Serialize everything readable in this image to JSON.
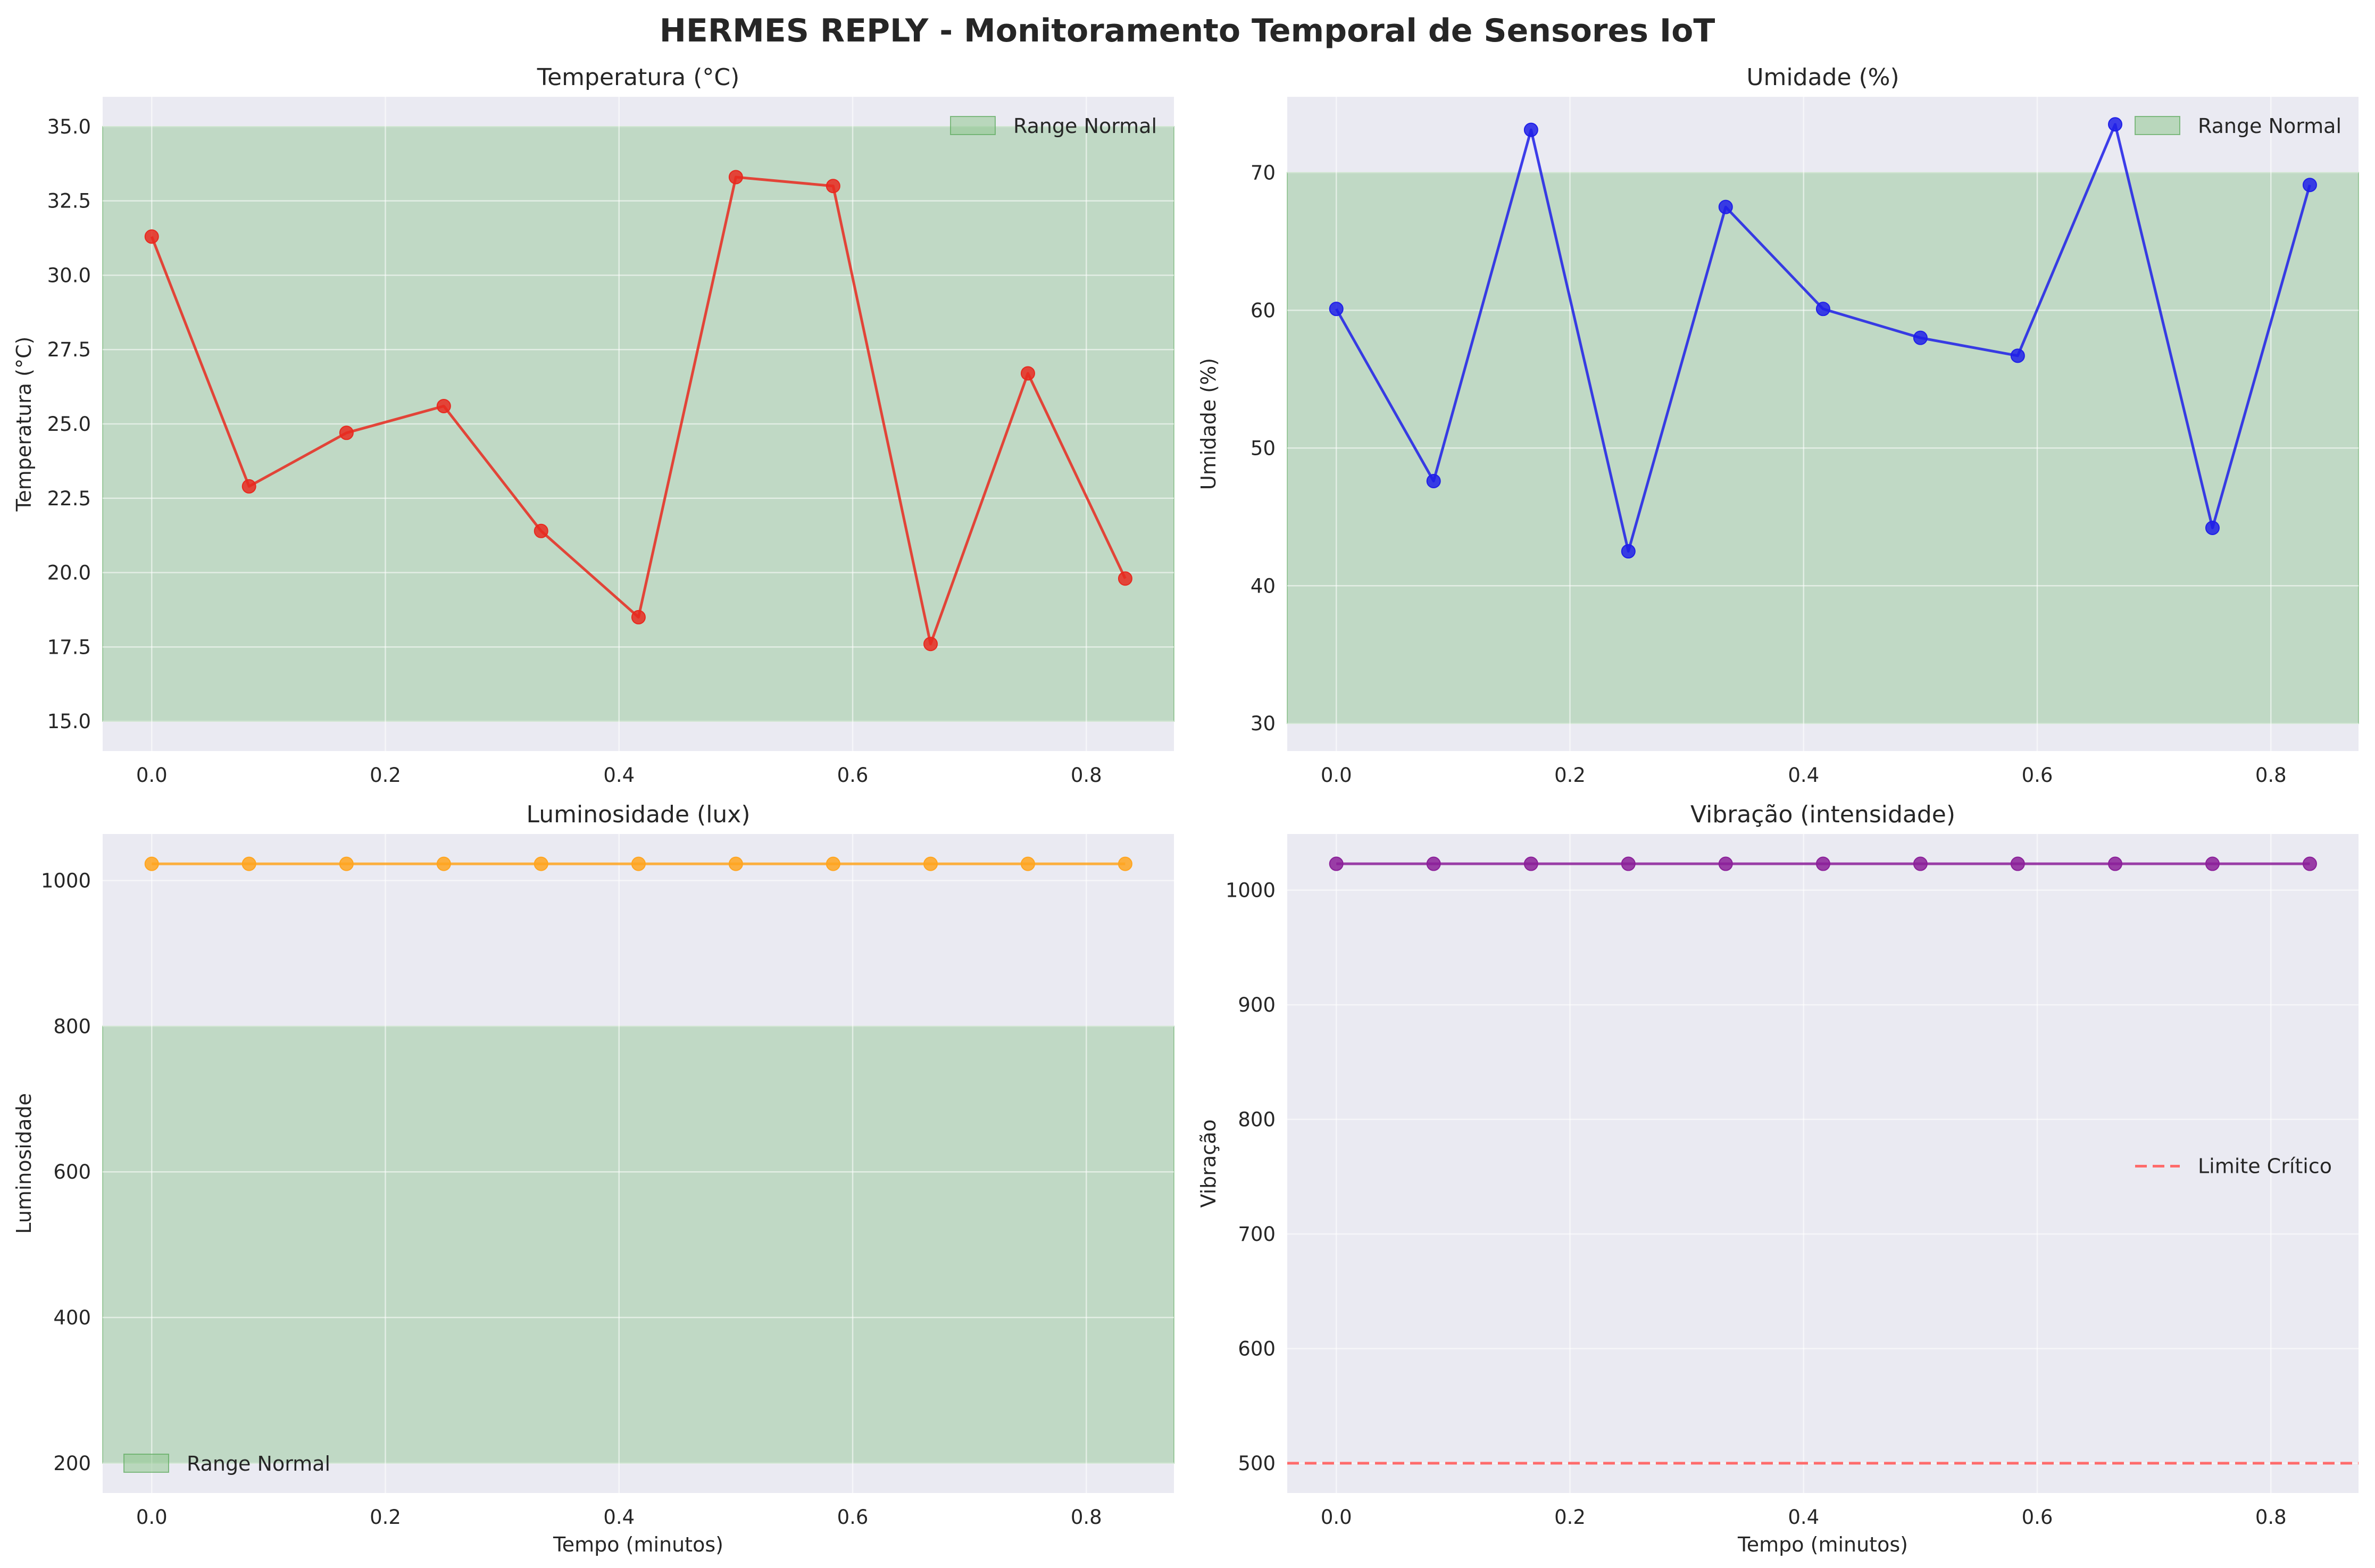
{
  "suptitle": "HERMES REPLY - Monitoramento Temporal de Sensores IoT",
  "colors": {
    "axes_bg": "#eaeaf2",
    "grid": "#ffffff",
    "normal_band": "#8fc68f",
    "critical_line": "#ff6b6b"
  },
  "chart_data": [
    {
      "type": "line",
      "title": "Temperatura (°C)",
      "xlabel": "",
      "ylabel": "Temperatura (°C)",
      "color": "#e8291f",
      "x": [
        0.0,
        0.0833,
        0.1667,
        0.25,
        0.3333,
        0.4167,
        0.5,
        0.5833,
        0.6667,
        0.75,
        0.8333
      ],
      "values": [
        31.3,
        22.9,
        24.7,
        25.6,
        21.4,
        18.5,
        33.3,
        33.0,
        17.6,
        26.7,
        19.8
      ],
      "xlim": [
        -0.042,
        0.875
      ],
      "ylim": [
        14.0,
        36.0
      ],
      "xticks": [
        "0.0",
        "0.2",
        "0.4",
        "0.6",
        "0.8"
      ],
      "yticks": [
        "15.0",
        "17.5",
        "20.0",
        "22.5",
        "25.0",
        "27.5",
        "30.0",
        "32.5",
        "35.0"
      ],
      "band": {
        "from": 15,
        "to": 35,
        "label": "Range Normal"
      },
      "legend": {
        "position": "top-right",
        "label": "Range Normal",
        "kind": "band"
      }
    },
    {
      "type": "line",
      "title": "Umidade (%)",
      "xlabel": "",
      "ylabel": "Umidade (%)",
      "color": "#1f1fe8",
      "x": [
        0.0,
        0.0833,
        0.1667,
        0.25,
        0.3333,
        0.4167,
        0.5,
        0.5833,
        0.6667,
        0.75,
        0.8333
      ],
      "values": [
        60.1,
        47.6,
        73.1,
        42.5,
        67.5,
        60.1,
        58.0,
        56.7,
        73.5,
        44.2,
        69.1
      ],
      "xlim": [
        -0.042,
        0.875
      ],
      "ylim": [
        28.0,
        75.5
      ],
      "xticks": [
        "0.0",
        "0.2",
        "0.4",
        "0.6",
        "0.8"
      ],
      "yticks": [
        "30",
        "40",
        "50",
        "60",
        "70"
      ],
      "band": {
        "from": 30,
        "to": 70,
        "label": "Range Normal"
      },
      "legend": {
        "position": "top-right",
        "label": "Range Normal",
        "kind": "band"
      }
    },
    {
      "type": "line",
      "title": "Luminosidade (lux)",
      "xlabel": "Tempo (minutos)",
      "ylabel": "Luminosidade",
      "color": "#ffa51f",
      "x": [
        0.0,
        0.0833,
        0.1667,
        0.25,
        0.3333,
        0.4167,
        0.5,
        0.5833,
        0.6667,
        0.75,
        0.8333
      ],
      "values": [
        1023,
        1023,
        1023,
        1023,
        1023,
        1023,
        1023,
        1023,
        1023,
        1023,
        1023
      ],
      "xlim": [
        -0.042,
        0.875
      ],
      "ylim": [
        159,
        1064
      ],
      "xticks": [
        "0.0",
        "0.2",
        "0.4",
        "0.6",
        "0.8"
      ],
      "yticks": [
        "200",
        "400",
        "600",
        "800",
        "1000"
      ],
      "band": {
        "from": 200,
        "to": 800,
        "label": "Range Normal"
      },
      "legend": {
        "position": "bottom-left",
        "label": "Range Normal",
        "kind": "band"
      }
    },
    {
      "type": "line",
      "title": "Vibração (intensidade)",
      "xlabel": "Tempo (minutos)",
      "ylabel": "Vibração",
      "color": "#8b1f99",
      "x": [
        0.0,
        0.0833,
        0.1667,
        0.25,
        0.3333,
        0.4167,
        0.5,
        0.5833,
        0.6667,
        0.75,
        0.8333
      ],
      "values": [
        1023,
        1023,
        1023,
        1023,
        1023,
        1023,
        1023,
        1023,
        1023,
        1023,
        1023
      ],
      "xlim": [
        -0.042,
        0.875
      ],
      "ylim": [
        474,
        1049
      ],
      "xticks": [
        "0.0",
        "0.2",
        "0.4",
        "0.6",
        "0.8"
      ],
      "yticks": [
        "500",
        "600",
        "700",
        "800",
        "900",
        "1000"
      ],
      "hline": {
        "value": 500,
        "label": "Limite Crítico"
      },
      "legend": {
        "position": "center-right",
        "label": "Limite Crítico",
        "kind": "dashed-line"
      }
    }
  ]
}
